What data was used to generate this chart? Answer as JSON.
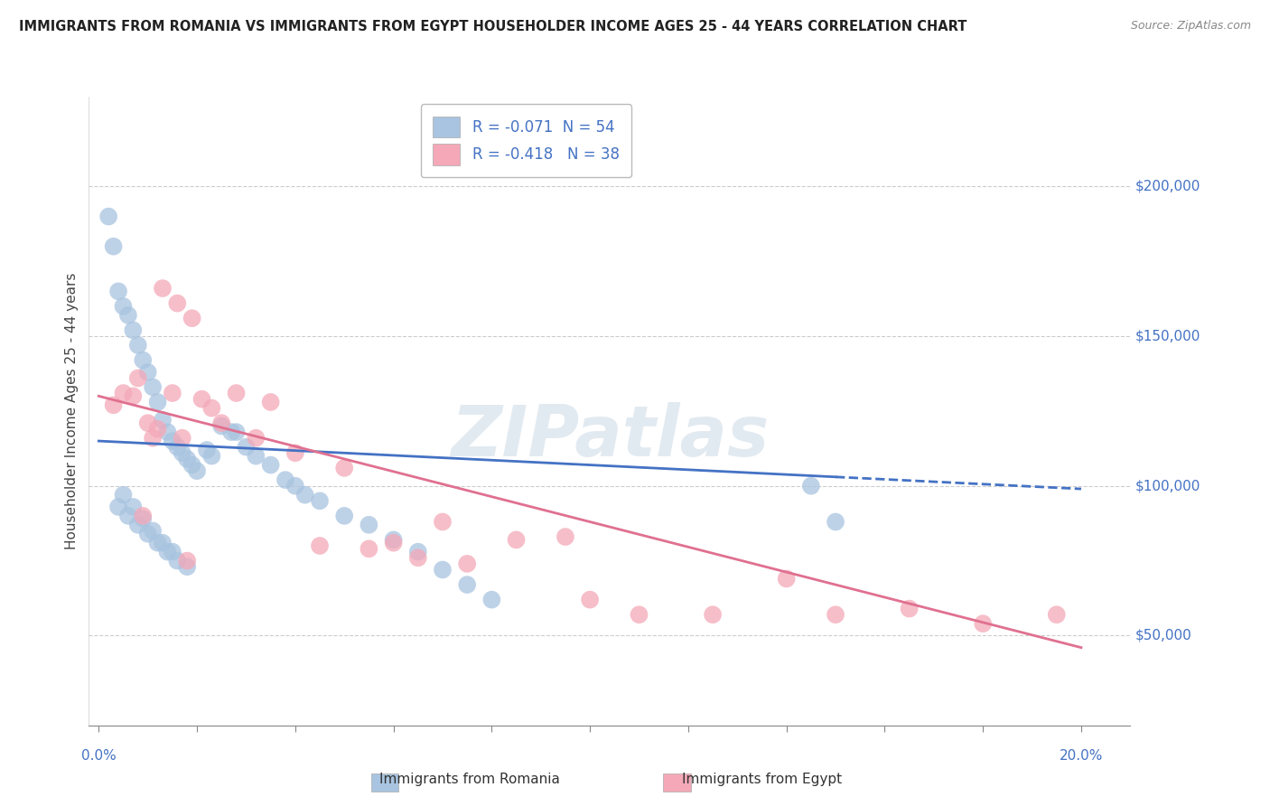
{
  "title": "IMMIGRANTS FROM ROMANIA VS IMMIGRANTS FROM EGYPT HOUSEHOLDER INCOME AGES 25 - 44 YEARS CORRELATION CHART",
  "source": "Source: ZipAtlas.com",
  "ylabel": "Householder Income Ages 25 - 44 years",
  "xlim": [
    -0.2,
    21.0
  ],
  "ylim": [
    20000,
    230000
  ],
  "yticks": [
    50000,
    100000,
    150000,
    200000
  ],
  "ytick_labels": [
    "$50,000",
    "$100,000",
    "$150,000",
    "$200,000"
  ],
  "romania_R": -0.071,
  "romania_N": 54,
  "egypt_R": -0.418,
  "egypt_N": 38,
  "romania_color": "#a8c4e0",
  "egypt_color": "#f4a8b8",
  "romania_line_color": "#4472c4",
  "egypt_line_color": "#e07090",
  "watermark": "ZIPatlas",
  "background_color": "#ffffff",
  "grid_color": "#cccccc",
  "romania_line_intercept": 115000,
  "romania_line_slope": -800,
  "egypt_line_intercept": 130000,
  "egypt_line_slope": -4200,
  "romania_x": [
    0.2,
    0.3,
    0.4,
    0.5,
    0.6,
    0.7,
    0.8,
    0.9,
    1.0,
    1.1,
    1.2,
    1.3,
    1.4,
    1.5,
    1.6,
    1.7,
    1.8,
    1.9,
    2.0,
    0.5,
    0.7,
    0.9,
    1.1,
    1.3,
    1.5,
    2.2,
    2.5,
    2.8,
    3.0,
    3.2,
    3.5,
    3.8,
    4.0,
    4.2,
    4.5,
    5.0,
    5.5,
    6.0,
    6.5,
    7.0,
    7.5,
    8.0,
    0.4,
    0.6,
    0.8,
    1.0,
    1.2,
    1.4,
    1.6,
    1.8,
    2.3,
    2.7,
    14.5,
    15.0
  ],
  "romania_y": [
    190000,
    180000,
    165000,
    160000,
    157000,
    152000,
    147000,
    142000,
    138000,
    133000,
    128000,
    122000,
    118000,
    115000,
    113000,
    111000,
    109000,
    107000,
    105000,
    97000,
    93000,
    89000,
    85000,
    81000,
    78000,
    112000,
    120000,
    118000,
    113000,
    110000,
    107000,
    102000,
    100000,
    97000,
    95000,
    90000,
    87000,
    82000,
    78000,
    72000,
    67000,
    62000,
    93000,
    90000,
    87000,
    84000,
    81000,
    78000,
    75000,
    73000,
    110000,
    118000,
    100000,
    88000
  ],
  "egypt_x": [
    0.3,
    0.5,
    0.8,
    1.0,
    1.2,
    1.3,
    1.5,
    1.6,
    1.7,
    1.9,
    2.1,
    2.3,
    2.5,
    2.8,
    3.2,
    3.5,
    4.0,
    4.5,
    5.0,
    5.5,
    6.0,
    6.5,
    7.0,
    7.5,
    8.5,
    9.5,
    10.0,
    11.0,
    12.5,
    14.0,
    15.0,
    16.5,
    18.0,
    19.5,
    0.7,
    1.1,
    1.8,
    0.9
  ],
  "egypt_y": [
    127000,
    131000,
    136000,
    121000,
    119000,
    166000,
    131000,
    161000,
    116000,
    156000,
    129000,
    126000,
    121000,
    131000,
    116000,
    128000,
    111000,
    80000,
    106000,
    79000,
    81000,
    76000,
    88000,
    74000,
    82000,
    83000,
    62000,
    57000,
    57000,
    69000,
    57000,
    59000,
    54000,
    57000,
    130000,
    116000,
    75000,
    90000
  ]
}
